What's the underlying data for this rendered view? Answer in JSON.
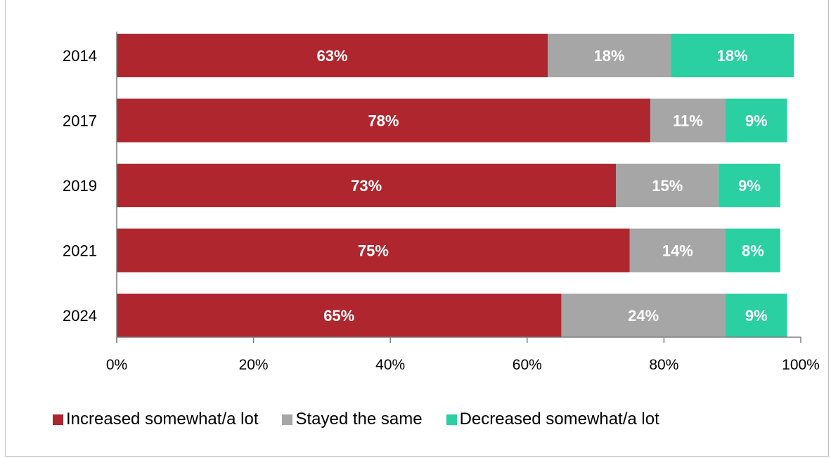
{
  "chart_data": {
    "type": "bar",
    "orientation": "horizontal",
    "stacked": true,
    "categories": [
      "2014",
      "2017",
      "2019",
      "2021",
      "2024"
    ],
    "series": [
      {
        "name": "Increased somewhat/a lot",
        "color": "#b0262e",
        "values": [
          63,
          78,
          73,
          75,
          65
        ],
        "labels": [
          "63%",
          "78%",
          "73%",
          "75%",
          "65%"
        ]
      },
      {
        "name": "Stayed the same",
        "color": "#a6a6a6",
        "values": [
          18,
          11,
          15,
          14,
          24
        ],
        "labels": [
          "18%",
          "11%",
          "15%",
          "14%",
          "24%"
        ]
      },
      {
        "name": "Decreased somewhat/a lot",
        "color": "#2ad0a1",
        "values": [
          18,
          9,
          9,
          8,
          9
        ],
        "labels": [
          "18%",
          "9%",
          "9%",
          "8%",
          "9%"
        ]
      }
    ],
    "xlim": [
      0,
      100
    ],
    "x_ticks": [
      "0%",
      "20%",
      "40%",
      "60%",
      "80%",
      "100%"
    ],
    "grid": false,
    "legend_position": "bottom"
  }
}
